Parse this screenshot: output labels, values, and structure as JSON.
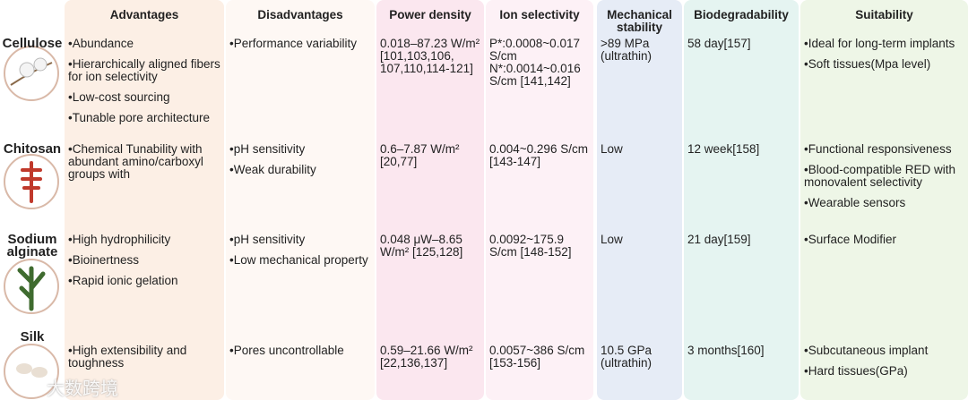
{
  "header": {
    "columns": [
      "Advantages",
      "Disadvantages",
      "Power density",
      "Ion selectivity",
      "Mechanical stability",
      "Biodegradability",
      "Suitability"
    ]
  },
  "rows": [
    {
      "material": "Cellulose",
      "cells": [
        [
          "•Abundance",
          "•Hierarchically aligned fibers for ion selectivity",
          "•Low-cost sourcing",
          "•Tunable pore architecture"
        ],
        [
          "•Performance variability"
        ],
        "0.018–87.23 W/m² [101,103,106, 107,110,114-121]",
        "P*:0.0008~0.017 S/cm N*:0.0014~0.016 S/cm [141,142]",
        ">89 MPa (ultrathin)",
        "58 day[157]",
        [
          "•Ideal for long-term implants",
          "•Soft tissues(Mpa level)"
        ]
      ]
    },
    {
      "material": "Chitosan",
      "cells": [
        [
          "•Chemical Tunability with abundant amino/carboxyl groups with"
        ],
        [
          "•pH sensitivity",
          "•Weak durability"
        ],
        "0.6–7.87 W/m² [20,77]",
        "0.004~0.296 S/cm [143-147]",
        "Low",
        "12 week[158]",
        [
          "•Functional responsiveness",
          "•Blood-compatible RED with monovalent selectivity",
          "•Wearable sensors"
        ]
      ]
    },
    {
      "material": "Sodium alginate",
      "cells": [
        [
          "•High hydrophilicity",
          "•Bioinertness",
          "•Rapid ionic gelation"
        ],
        [
          "•pH sensitivity",
          "•Low mechanical property"
        ],
        "0.048 μW–8.65 W/m² [125,128]",
        "0.0092~175.9 S/cm [148-152]",
        "Low",
        "21 day[159]",
        [
          "•Surface Modifier"
        ]
      ]
    },
    {
      "material": "Silk",
      "cells": [
        [
          "•High extensibility and toughness"
        ],
        [
          "•Pores uncontrollable"
        ],
        "0.59–21.66 W/m² [22,136,137]",
        "0.0057~386 S/cm [153-156]",
        "10.5 GPa (ultrathin)",
        "3 months[160]",
        [
          "•Subcutaneous implant",
          "•Hard tissues(GPa)"
        ]
      ]
    }
  ],
  "watermark": "大数跨境"
}
